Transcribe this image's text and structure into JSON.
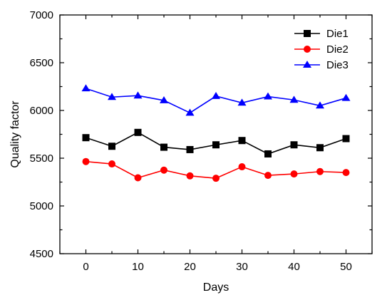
{
  "chart_data": {
    "type": "line",
    "title": "",
    "xlabel": "Days",
    "ylabel": "Quality factor",
    "xlim": [
      -5,
      55
    ],
    "ylim": [
      4500,
      7000
    ],
    "xticks": [
      0,
      10,
      20,
      30,
      40,
      50
    ],
    "yticks": [
      4500,
      5000,
      5500,
      6000,
      6500,
      7000
    ],
    "x": [
      0,
      5,
      10,
      15,
      20,
      25,
      30,
      35,
      40,
      45,
      50
    ],
    "grid": false,
    "legend_position": "top-right",
    "series": [
      {
        "name": "Die1",
        "color": "#000000",
        "marker": "square",
        "values": [
          5715,
          5625,
          5770,
          5615,
          5590,
          5640,
          5685,
          5545,
          5640,
          5610,
          5705
        ]
      },
      {
        "name": "Die2",
        "color": "#ff0000",
        "marker": "circle",
        "values": [
          5465,
          5440,
          5295,
          5375,
          5315,
          5290,
          5410,
          5320,
          5335,
          5360,
          5350
        ]
      },
      {
        "name": "Die3",
        "color": "#0000ff",
        "marker": "triangle",
        "values": [
          6230,
          6140,
          6155,
          6105,
          5975,
          6150,
          6080,
          6145,
          6110,
          6050,
          6130
        ]
      }
    ]
  }
}
